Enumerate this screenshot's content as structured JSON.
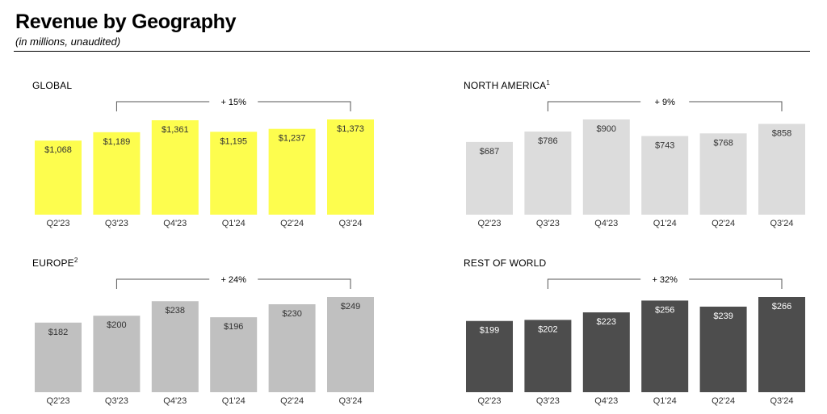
{
  "header": {
    "title": "Revenue by Geography",
    "subtitle": "(in millions, unaudited)"
  },
  "colors": {
    "global": "#fdfd4e",
    "north_america": "#dcdcdc",
    "europe": "#c0c0c0",
    "rest_of_world": "#4d4d4d",
    "label_dark": "#333333",
    "label_light": "#ffffff",
    "bracket": "#555555"
  },
  "chart_data": [
    {
      "id": "global",
      "type": "bar",
      "title": "GLOBAL",
      "footnote": "",
      "categories": [
        "Q2'23",
        "Q3'23",
        "Q4'23",
        "Q1'24",
        "Q2'24",
        "Q3'24"
      ],
      "values": [
        1068,
        1189,
        1361,
        1195,
        1237,
        1373
      ],
      "value_labels": [
        "$1,068",
        "$1,189",
        "$1,361",
        "$1,195",
        "$1,237",
        "$1,373"
      ],
      "growth_label": "+ 15%",
      "growth_from": "Q3'23",
      "growth_to": "Q3'24",
      "ylim": [
        0,
        1373
      ],
      "grid": false,
      "color": "#fdfd4e",
      "label_color": "#333333"
    },
    {
      "id": "north-america",
      "type": "bar",
      "title": "NORTH AMERICA",
      "footnote": "1",
      "categories": [
        "Q2'23",
        "Q3'23",
        "Q4'23",
        "Q1'24",
        "Q2'24",
        "Q3'24"
      ],
      "values": [
        687,
        786,
        900,
        743,
        768,
        858
      ],
      "value_labels": [
        "$687",
        "$786",
        "$900",
        "$743",
        "$768",
        "$858"
      ],
      "growth_label": "+ 9%",
      "growth_from": "Q3'23",
      "growth_to": "Q3'24",
      "ylim": [
        0,
        900
      ],
      "grid": false,
      "color": "#dcdcdc",
      "label_color": "#333333"
    },
    {
      "id": "europe",
      "type": "bar",
      "title": "EUROPE",
      "footnote": "2",
      "categories": [
        "Q2'23",
        "Q3'23",
        "Q4'23",
        "Q1'24",
        "Q2'24",
        "Q3'24"
      ],
      "values": [
        182,
        200,
        238,
        196,
        230,
        249
      ],
      "value_labels": [
        "$182",
        "$200",
        "$238",
        "$196",
        "$230",
        "$249"
      ],
      "growth_label": "+ 24%",
      "growth_from": "Q3'23",
      "growth_to": "Q3'24",
      "ylim": [
        0,
        249
      ],
      "grid": false,
      "color": "#c0c0c0",
      "label_color": "#333333"
    },
    {
      "id": "rest-of-world",
      "type": "bar",
      "title": "REST OF WORLD",
      "footnote": "",
      "categories": [
        "Q2'23",
        "Q3'23",
        "Q4'23",
        "Q1'24",
        "Q2'24",
        "Q3'24"
      ],
      "values": [
        199,
        202,
        223,
        256,
        239,
        266
      ],
      "value_labels": [
        "$199",
        "$202",
        "$223",
        "$256",
        "$239",
        "$266"
      ],
      "growth_label": "+ 32%",
      "growth_from": "Q3'23",
      "growth_to": "Q3'24",
      "ylim": [
        0,
        266
      ],
      "grid": false,
      "color": "#4d4d4d",
      "label_color": "#ffffff"
    }
  ]
}
